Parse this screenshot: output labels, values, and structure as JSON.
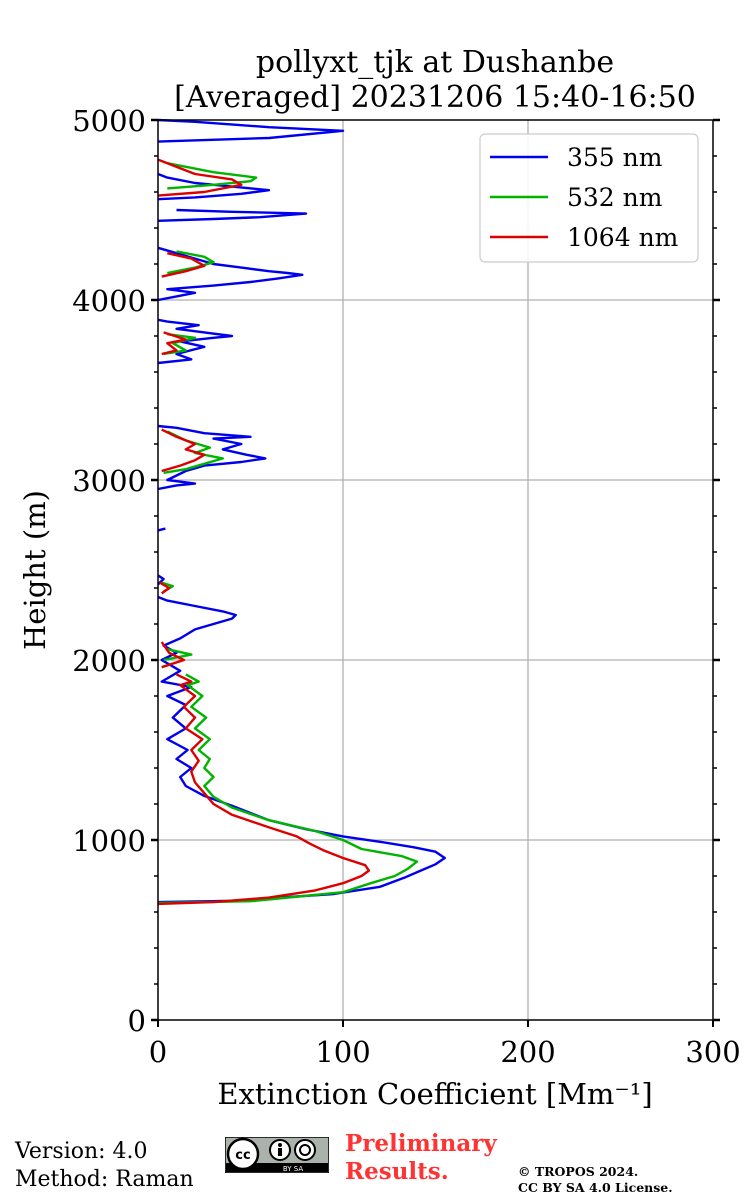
{
  "chart_data": {
    "type": "line",
    "title": "pollyxt_tjk at Dushanbe",
    "subtitle": "[Averaged] 20231206 15:40-16:50",
    "xlabel": "Extinction Coefficient [Mm⁻¹]",
    "ylabel": "Height (m)",
    "xlim": [
      0,
      300
    ],
    "ylim": [
      0,
      5000
    ],
    "xticks": [
      0,
      100,
      200,
      300
    ],
    "yticks": [
      0,
      1000,
      2000,
      3000,
      4000,
      5000
    ],
    "grid": true,
    "legend_position": "top-right",
    "series": [
      {
        "name": "355 nm",
        "color": "#0000ee",
        "segments": [
          [
            [
              0,
              655
            ],
            [
              40,
              662
            ],
            [
              95,
              700
            ],
            [
              120,
              740
            ],
            [
              133,
              790
            ],
            [
              142,
              830
            ],
            [
              150,
              865
            ],
            [
              155,
              900
            ],
            [
              150,
              935
            ],
            [
              138,
              960
            ],
            [
              120,
              990
            ],
            [
              100,
              1020
            ],
            [
              80,
              1060
            ],
            [
              60,
              1110
            ],
            [
              40,
              1190
            ],
            [
              25,
              1245
            ],
            [
              15,
              1300
            ],
            [
              12,
              1350
            ],
            [
              18,
              1400
            ],
            [
              10,
              1450
            ],
            [
              16,
              1500
            ],
            [
              5,
              1560
            ],
            [
              15,
              1620
            ],
            [
              8,
              1680
            ],
            [
              15,
              1750
            ],
            [
              5,
              1800
            ],
            [
              18,
              1850
            ],
            [
              2,
              1880
            ],
            [
              12,
              1940
            ],
            [
              2,
              2000
            ],
            [
              10,
              2040
            ],
            [
              3,
              2080
            ],
            [
              12,
              2120
            ],
            [
              20,
              2170
            ],
            [
              30,
              2200
            ],
            [
              40,
              2230
            ],
            [
              42,
              2250
            ],
            [
              35,
              2270
            ],
            [
              20,
              2300
            ],
            [
              5,
              2330
            ],
            [
              0,
              2350
            ]
          ],
          [
            [
              0,
              2420
            ],
            [
              3,
              2450
            ],
            [
              0,
              2470
            ]
          ],
          [
            [
              0,
              2720
            ],
            [
              4,
              2730
            ]
          ],
          [
            [
              0,
              2950
            ],
            [
              10,
              2970
            ],
            [
              20,
              2980
            ],
            [
              5,
              3000
            ],
            [
              15,
              3050
            ],
            [
              25,
              3080
            ],
            [
              45,
              3100
            ],
            [
              58,
              3120
            ],
            [
              48,
              3140
            ],
            [
              35,
              3170
            ],
            [
              45,
              3200
            ],
            [
              30,
              3230
            ],
            [
              50,
              3240
            ],
            [
              25,
              3260
            ],
            [
              10,
              3290
            ],
            [
              0,
              3300
            ]
          ],
          [
            [
              0,
              3650
            ],
            [
              18,
              3670
            ],
            [
              10,
              3700
            ],
            [
              25,
              3740
            ],
            [
              12,
              3770
            ],
            [
              30,
              3790
            ],
            [
              40,
              3800
            ],
            [
              25,
              3820
            ],
            [
              10,
              3840
            ],
            [
              22,
              3860
            ],
            [
              5,
              3880
            ],
            [
              0,
              3890
            ]
          ],
          [
            [
              0,
              4000
            ],
            [
              10,
              4020
            ],
            [
              20,
              4040
            ],
            [
              5,
              4060
            ],
            [
              30,
              4080
            ],
            [
              50,
              4100
            ],
            [
              65,
              4120
            ],
            [
              78,
              4140
            ],
            [
              70,
              4150
            ],
            [
              60,
              4160
            ],
            [
              45,
              4180
            ],
            [
              30,
              4200
            ],
            [
              20,
              4230
            ],
            [
              10,
              4260
            ],
            [
              0,
              4290
            ]
          ],
          [
            [
              0,
              4440
            ],
            [
              30,
              4450
            ],
            [
              55,
              4460
            ],
            [
              80,
              4480
            ],
            [
              40,
              4490
            ],
            [
              10,
              4500
            ]
          ],
          [
            [
              0,
              4560
            ],
            [
              20,
              4570
            ],
            [
              45,
              4590
            ],
            [
              60,
              4610
            ],
            [
              40,
              4630
            ],
            [
              20,
              4650
            ],
            [
              5,
              4680
            ],
            [
              0,
              4700
            ]
          ],
          [
            [
              0,
              4880
            ],
            [
              60,
              4900
            ],
            [
              100,
              4940
            ],
            [
              60,
              4960
            ],
            [
              20,
              4990
            ],
            [
              0,
              5000
            ]
          ]
        ]
      },
      {
        "name": "532 nm",
        "color": "#00b400",
        "segments": [
          [
            [
              0,
              650
            ],
            [
              50,
              660
            ],
            [
              100,
              710
            ],
            [
              115,
              760
            ],
            [
              128,
              800
            ],
            [
              135,
              840
            ],
            [
              140,
              880
            ],
            [
              132,
              910
            ],
            [
              110,
              950
            ],
            [
              100,
              1000
            ],
            [
              85,
              1050
            ],
            [
              60,
              1110
            ],
            [
              40,
              1180
            ],
            [
              30,
              1240
            ],
            [
              25,
              1300
            ],
            [
              30,
              1350
            ],
            [
              25,
              1400
            ],
            [
              28,
              1450
            ],
            [
              22,
              1500
            ],
            [
              28,
              1560
            ],
            [
              20,
              1620
            ],
            [
              26,
              1680
            ],
            [
              18,
              1740
            ],
            [
              24,
              1800
            ],
            [
              16,
              1860
            ],
            [
              22,
              1880
            ],
            [
              15,
              1920
            ]
          ],
          [
            [
              3,
              2000
            ],
            [
              18,
              2030
            ],
            [
              5,
              2060
            ]
          ],
          [
            [
              3,
              2380
            ],
            [
              8,
              2410
            ],
            [
              2,
              2430
            ]
          ],
          [
            [
              3,
              3040
            ],
            [
              15,
              3060
            ],
            [
              25,
              3090
            ],
            [
              35,
              3120
            ],
            [
              20,
              3150
            ],
            [
              28,
              3180
            ],
            [
              15,
              3220
            ],
            [
              5,
              3270
            ]
          ],
          [
            [
              3,
              3700
            ],
            [
              15,
              3720
            ],
            [
              8,
              3760
            ],
            [
              20,
              3790
            ],
            [
              5,
              3810
            ]
          ],
          [
            [
              5,
              4150
            ],
            [
              20,
              4180
            ],
            [
              30,
              4210
            ],
            [
              25,
              4240
            ],
            [
              10,
              4270
            ]
          ],
          [
            [
              5,
              4620
            ],
            [
              30,
              4640
            ],
            [
              50,
              4660
            ],
            [
              53,
              4680
            ],
            [
              30,
              4710
            ],
            [
              5,
              4760
            ]
          ]
        ]
      },
      {
        "name": "1064 nm",
        "color": "#dd0000",
        "segments": [
          [
            [
              0,
              645
            ],
            [
              30,
              655
            ],
            [
              60,
              680
            ],
            [
              85,
              720
            ],
            [
              100,
              760
            ],
            [
              110,
              800
            ],
            [
              114,
              830
            ],
            [
              112,
              860
            ],
            [
              100,
              900
            ],
            [
              90,
              940
            ],
            [
              82,
              980
            ],
            [
              75,
              1020
            ],
            [
              60,
              1070
            ],
            [
              40,
              1140
            ],
            [
              30,
              1200
            ],
            [
              25,
              1260
            ],
            [
              20,
              1320
            ],
            [
              18,
              1380
            ],
            [
              22,
              1440
            ],
            [
              18,
              1500
            ],
            [
              24,
              1560
            ],
            [
              15,
              1620
            ],
            [
              20,
              1680
            ],
            [
              14,
              1740
            ],
            [
              20,
              1800
            ],
            [
              12,
              1860
            ],
            [
              18,
              1880
            ],
            [
              10,
              1920
            ]
          ],
          [
            [
              2,
              1960
            ],
            [
              14,
              2000
            ],
            [
              6,
              2040
            ],
            [
              2,
              2100
            ]
          ],
          [
            [
              2,
              2370
            ],
            [
              6,
              2400
            ],
            [
              1,
              2430
            ]
          ],
          [
            [
              2,
              3050
            ],
            [
              12,
              3080
            ],
            [
              20,
              3110
            ],
            [
              25,
              3140
            ],
            [
              15,
              3170
            ],
            [
              20,
              3200
            ],
            [
              10,
              3240
            ],
            [
              2,
              3280
            ]
          ],
          [
            [
              2,
              3700
            ],
            [
              10,
              3720
            ],
            [
              5,
              3760
            ],
            [
              15,
              3780
            ],
            [
              3,
              3820
            ]
          ],
          [
            [
              2,
              4130
            ],
            [
              15,
              4160
            ],
            [
              25,
              4190
            ],
            [
              18,
              4230
            ],
            [
              5,
              4260
            ]
          ],
          [
            [
              0,
              4580
            ],
            [
              25,
              4600
            ],
            [
              45,
              4640
            ],
            [
              40,
              4670
            ],
            [
              20,
              4700
            ],
            [
              0,
              4780
            ]
          ]
        ]
      }
    ]
  },
  "footer": {
    "version": "Version: 4.0",
    "method": "Method: Raman",
    "preliminary_line1": "Preliminary",
    "preliminary_line2": "Results.",
    "copyright_line1": "© TROPOS 2024.",
    "copyright_line2": "CC BY SA 4.0 License.",
    "license_badge_text": "BY SA"
  }
}
